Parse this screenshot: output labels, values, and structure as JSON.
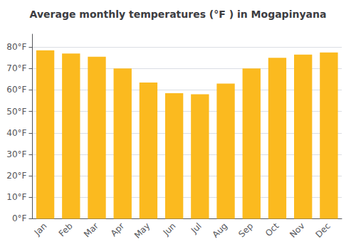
{
  "chart_data": {
    "type": "bar",
    "title": "Average monthly temperatures (°F ) in Mogapinyana",
    "categories": [
      "Jan",
      "Feb",
      "Mar",
      "Apr",
      "May",
      "Jun",
      "Jul",
      "Aug",
      "Sep",
      "Oct",
      "Nov",
      "Dec"
    ],
    "values": [
      78.5,
      77.0,
      75.5,
      70.0,
      63.5,
      58.5,
      58.0,
      63.0,
      70.0,
      75.0,
      76.5,
      77.5
    ],
    "color": "#FBBA1F",
    "ylim": [
      0,
      86
    ],
    "yticks": [
      {
        "value": 0,
        "label": "0°F"
      },
      {
        "value": 10,
        "label": "10°F"
      },
      {
        "value": 20,
        "label": "20°F"
      },
      {
        "value": 30,
        "label": "30°F"
      },
      {
        "value": 40,
        "label": "40°F"
      },
      {
        "value": 50,
        "label": "50°F"
      },
      {
        "value": 60,
        "label": "60°F"
      },
      {
        "value": 70,
        "label": "70°F"
      },
      {
        "value": 80,
        "label": "80°F"
      }
    ],
    "grid": true
  }
}
